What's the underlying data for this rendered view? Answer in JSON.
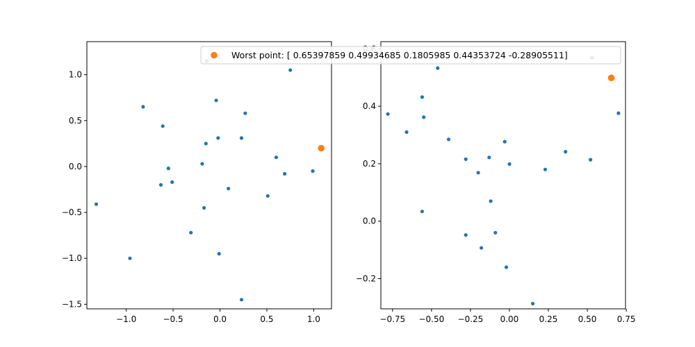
{
  "colors": {
    "points": "#1f77b4",
    "worst": "#ff7f0e",
    "axes": "#000000",
    "legend_border": "#cccccc"
  },
  "legend": {
    "label": "Worst point: [ 0.65397859  0.49934685  0.1805985   0.44353724 -0.28905511]"
  },
  "chart_data": [
    {
      "type": "scatter",
      "xlim": [
        -1.42,
        1.19
      ],
      "ylim": [
        -1.55,
        1.36
      ],
      "xticks": [
        -1.0,
        -0.5,
        0.0,
        0.5,
        1.0
      ],
      "xtick_labels": [
        "−1.0",
        "−0.5",
        "0.0",
        "0.5",
        "1.0"
      ],
      "yticks": [
        -1.5,
        -1.0,
        -0.5,
        0.0,
        0.5,
        1.0
      ],
      "ytick_labels": [
        "−1.5",
        "−1.0",
        "−0.5",
        "0.0",
        "0.5",
        "1.0"
      ],
      "grid": false,
      "series": [
        {
          "points": [
            [
              -1.32,
              -0.41
            ],
            [
              -0.96,
              -1.0
            ],
            [
              -0.82,
              0.65
            ],
            [
              -0.61,
              0.44
            ],
            [
              -0.63,
              -0.2
            ],
            [
              -0.55,
              -0.02
            ],
            [
              -0.51,
              -0.17
            ],
            [
              -0.31,
              -0.72
            ],
            [
              -0.19,
              0.03
            ],
            [
              -0.17,
              -0.45
            ],
            [
              -0.15,
              0.25
            ],
            [
              -0.04,
              0.72
            ],
            [
              -0.02,
              0.31
            ],
            [
              -0.01,
              -0.95
            ],
            [
              0.09,
              -0.24
            ],
            [
              0.23,
              0.31
            ],
            [
              0.27,
              0.58
            ],
            [
              0.23,
              -1.45
            ],
            [
              0.51,
              -0.32
            ],
            [
              0.6,
              0.1
            ],
            [
              0.69,
              -0.08
            ],
            [
              0.75,
              1.05
            ],
            [
              0.99,
              -0.05
            ],
            [
              -0.14,
              1.15
            ]
          ]
        },
        {
          "points": [
            [
              1.08,
              0.2
            ]
          ]
        }
      ]
    },
    {
      "type": "scatter",
      "xlim": [
        -0.825,
        0.745
      ],
      "ylim": [
        -0.305,
        0.625
      ],
      "xticks": [
        -0.75,
        -0.5,
        -0.25,
        0.0,
        0.25,
        0.5,
        0.75
      ],
      "xtick_labels": [
        "−0.75",
        "−0.50",
        "−0.25",
        "0.00",
        "0.25",
        "0.50",
        "0.75"
      ],
      "yticks": [
        -0.2,
        0.0,
        0.2,
        0.4,
        0.6
      ],
      "ytick_labels": [
        "−0.2",
        "0.0",
        "0.2",
        "0.4",
        "0.6"
      ],
      "grid": false,
      "series": [
        {
          "points": [
            [
              -0.78,
              0.373
            ],
            [
              -0.66,
              0.31
            ],
            [
              -0.56,
              0.432
            ],
            [
              -0.55,
              0.362
            ],
            [
              -0.46,
              0.533
            ],
            [
              -0.39,
              0.285
            ],
            [
              -0.56,
              0.034
            ],
            [
              -0.28,
              0.216
            ],
            [
              -0.28,
              -0.048
            ],
            [
              -0.2,
              0.169
            ],
            [
              -0.18,
              -0.093
            ],
            [
              -0.13,
              0.222
            ],
            [
              -0.12,
              0.07
            ],
            [
              -0.09,
              -0.04
            ],
            [
              -0.03,
              0.277
            ],
            [
              0.0,
              0.199
            ],
            [
              -0.02,
              -0.16
            ],
            [
              0.12,
              0.571
            ],
            [
              0.15,
              -0.287
            ],
            [
              0.23,
              0.18
            ],
            [
              0.36,
              0.242
            ],
            [
              0.52,
              0.214
            ],
            [
              0.53,
              0.569
            ],
            [
              0.7,
              0.376
            ]
          ]
        },
        {
          "points": [
            [
              0.654,
              0.499
            ]
          ]
        }
      ]
    }
  ]
}
